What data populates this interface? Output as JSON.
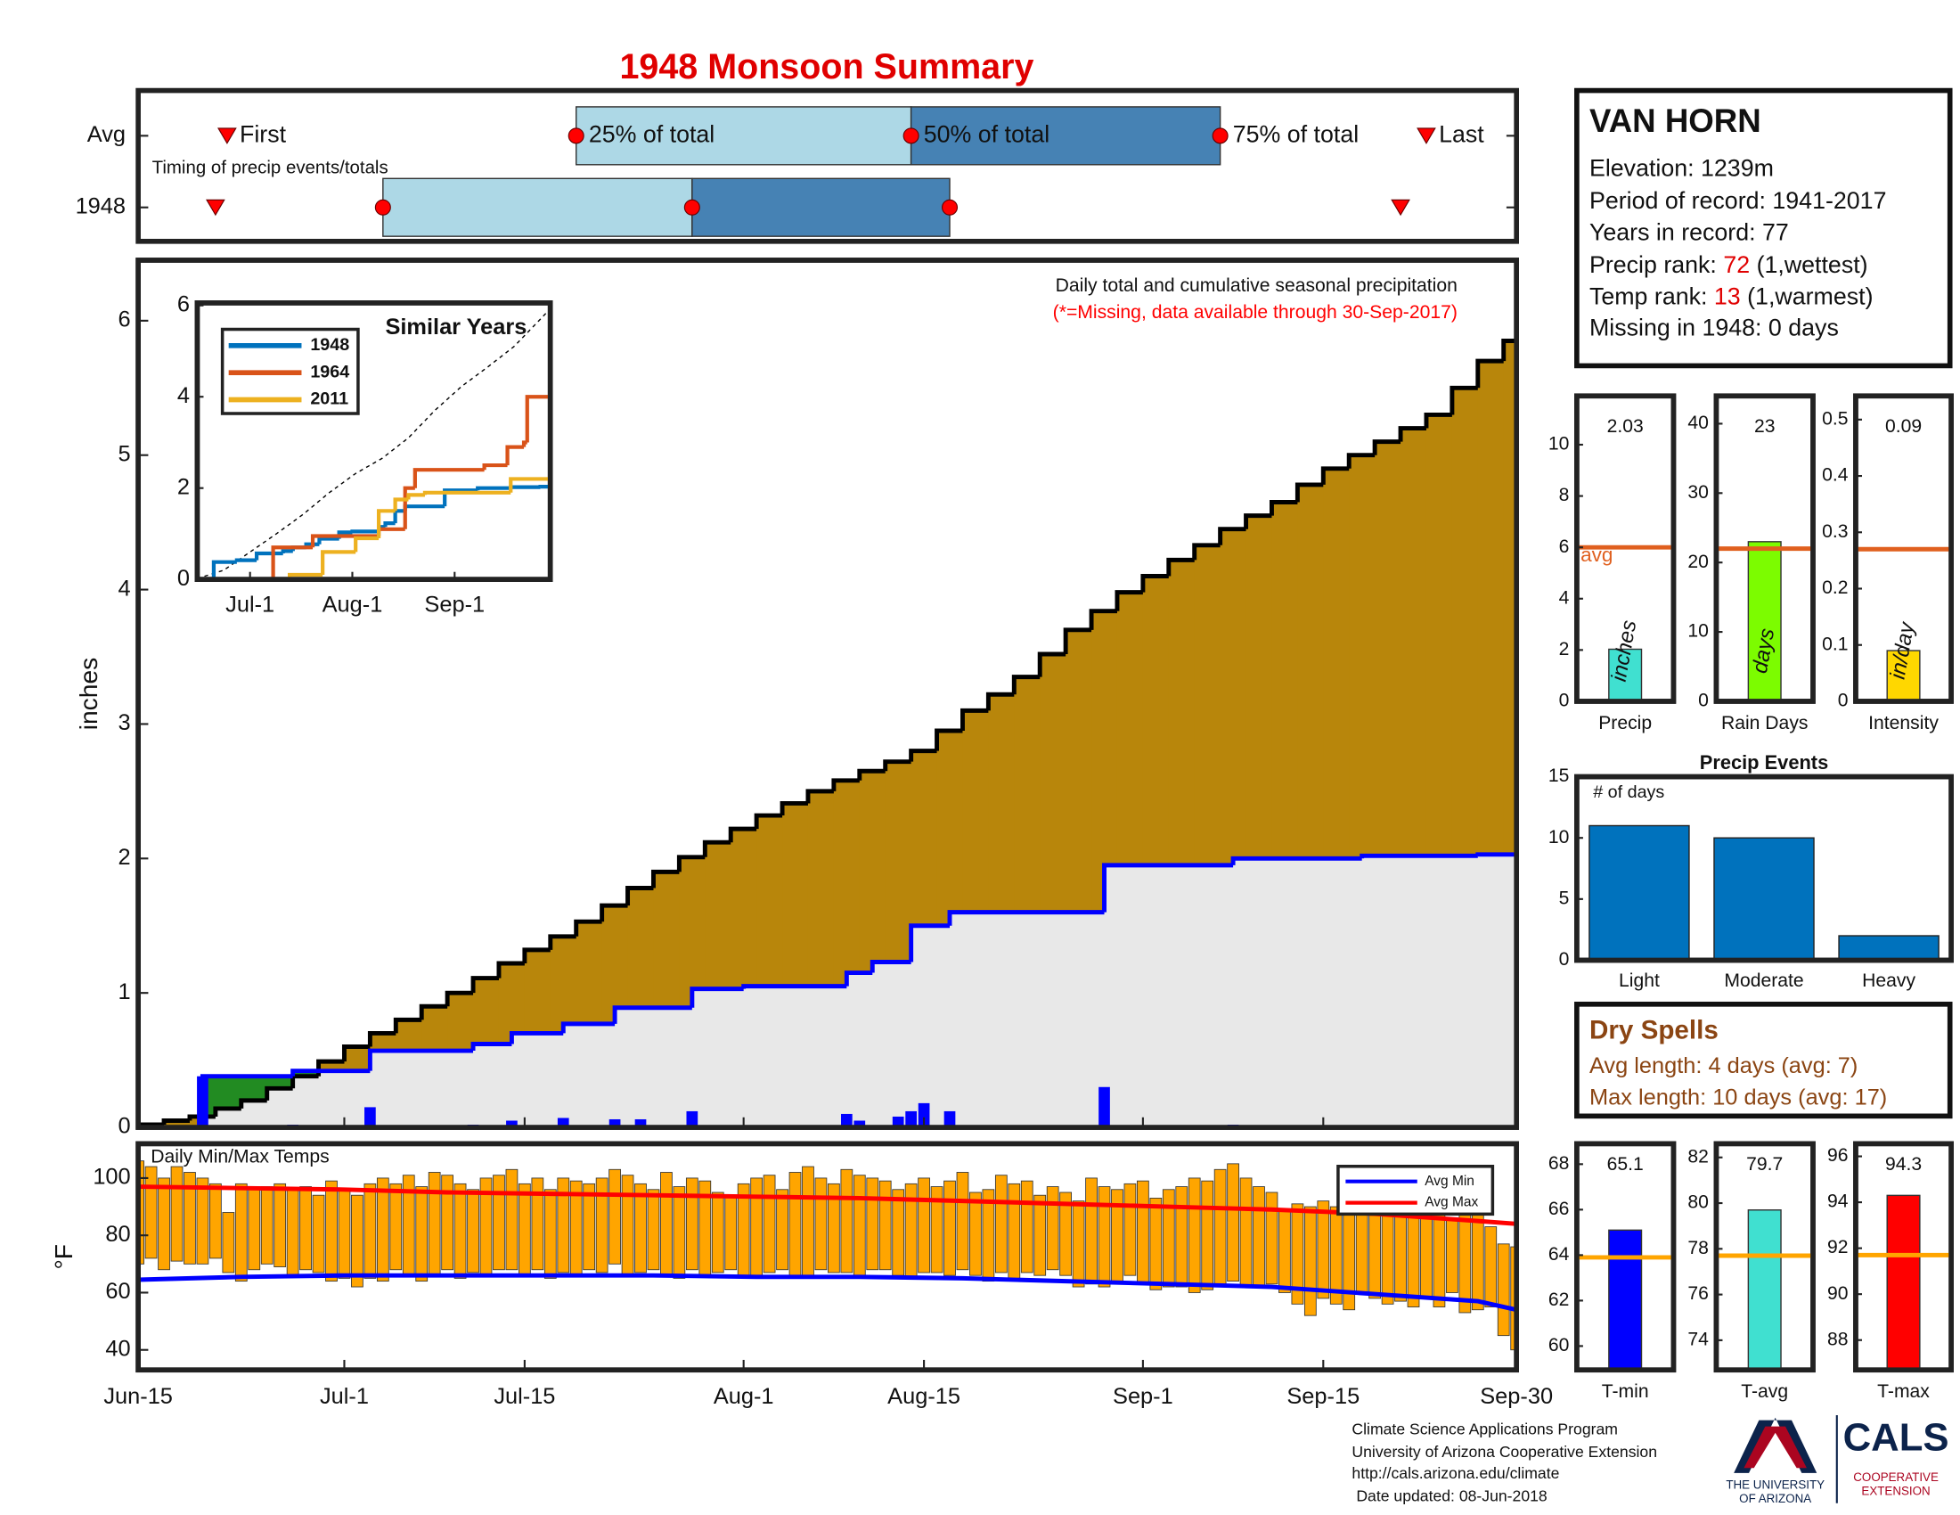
{
  "title": "1948 Monsoon Summary",
  "station": {
    "name": "VAN HORN",
    "elevation": "Elevation: 1239m",
    "period": "Period of record: 1941-2017",
    "years": "Years in record: 77",
    "precip_rank_label": "Precip rank:",
    "precip_rank": 72,
    "precip_rank_note": "(1,wettest)",
    "temp_rank_label": "Temp rank:",
    "temp_rank": 13,
    "temp_rank_note": "(1,warmest)",
    "missing": "Missing in 1948: 0 days"
  },
  "dry_spells": {
    "title": "Dry Spells",
    "avg": "Avg length: 4 days (avg: 7)",
    "max": "Max length: 10 days (avg: 17)"
  },
  "footer": {
    "lines": [
      "Climate Science Applications Program",
      "University of Arizona Cooperative Extension",
      "http://cals.arizona.edu/climate",
      " Date updated: 08-Jun-2018"
    ],
    "logo_ua": [
      "THE UNIVERSITY",
      "OF ARIZONA"
    ],
    "logo_cals": "CALS",
    "logo_ext": [
      "COOPERATIVE",
      "EXTENSION"
    ]
  },
  "chart_data": [
    {
      "type": "timing",
      "note": "Timing of precip events/totals",
      "categories": [
        "Avg",
        "1948"
      ],
      "first": [
        6.9,
        6
      ],
      "q25": [
        34,
        19
      ],
      "q50": [
        60,
        43
      ],
      "q75": [
        84,
        63
      ],
      "last": [
        100,
        98
      ],
      "marker_labels": [
        "First",
        "25% of total",
        "50% of total",
        "75% of total",
        "Last"
      ],
      "colors": [
        "#add8e6",
        "#4682b4"
      ],
      "marker_color": "#ff0000",
      "xlim": [
        0,
        107
      ]
    },
    {
      "type": "cumulative",
      "note": "Daily total and cumulative seasonal precipitation",
      "note2": "(*=Missing, data available through 30-Sep-2017)",
      "note2_color": "#ff0000",
      "ylabel": "inches",
      "xlim": [
        0,
        107
      ],
      "ylim": [
        0,
        6.45
      ],
      "yticks": [
        0,
        1,
        2,
        3,
        4,
        5,
        6
      ],
      "average": {
        "color": "#b8860b",
        "x": [
          0,
          2,
          4,
          6,
          8,
          10,
          12,
          14,
          16,
          18,
          20,
          22,
          24,
          26,
          28,
          30,
          32,
          34,
          36,
          38,
          40,
          42,
          44,
          46,
          48,
          50,
          52,
          54,
          56,
          58,
          60,
          62,
          64,
          66,
          68,
          70,
          72,
          74,
          76,
          78,
          80,
          82,
          84,
          86,
          88,
          90,
          92,
          94,
          96,
          98,
          100,
          102,
          104,
          106,
          107
        ],
        "values": [
          0.02,
          0.05,
          0.08,
          0.14,
          0.2,
          0.29,
          0.38,
          0.49,
          0.6,
          0.7,
          0.8,
          0.9,
          1.0,
          1.11,
          1.22,
          1.32,
          1.42,
          1.53,
          1.65,
          1.78,
          1.9,
          2.01,
          2.12,
          2.22,
          2.32,
          2.41,
          2.5,
          2.58,
          2.65,
          2.72,
          2.8,
          2.95,
          3.1,
          3.22,
          3.35,
          3.52,
          3.7,
          3.84,
          3.98,
          4.1,
          4.22,
          4.33,
          4.45,
          4.55,
          4.65,
          4.78,
          4.9,
          5.0,
          5.1,
          5.2,
          5.3,
          5.5,
          5.7,
          5.85,
          5.93
        ]
      },
      "observed": {
        "color": "#0000ff",
        "fill": "#e8e8e8",
        "above_color": "#228b22",
        "x": [
          0,
          5,
          12,
          18,
          26,
          29,
          33,
          37,
          43,
          47,
          55,
          57,
          60,
          63,
          75,
          85,
          95,
          104
        ],
        "values": [
          0,
          0.38,
          0.42,
          0.57,
          0.62,
          0.7,
          0.77,
          0.89,
          1.03,
          1.05,
          1.15,
          1.23,
          1.5,
          1.6,
          1.95,
          2.0,
          2.02,
          2.03
        ]
      },
      "daily": {
        "color": "#0000ff",
        "x": [
          5,
          12,
          18,
          26,
          29,
          33,
          37,
          39,
          43,
          55,
          56,
          59,
          60,
          61,
          63,
          75,
          85,
          95,
          104
        ],
        "values": [
          0.38,
          0.02,
          0.15,
          0.02,
          0.05,
          0.07,
          0.06,
          0.06,
          0.12,
          0.1,
          0.05,
          0.08,
          0.12,
          0.18,
          0.12,
          0.3,
          0.02,
          0.01,
          0.01
        ]
      }
    },
    {
      "type": "inset",
      "title": "Similar Years",
      "xlim": [
        0,
        107
      ],
      "ylim": [
        0,
        6
      ],
      "yticks": [
        0,
        2,
        4,
        6
      ],
      "xticks": [
        {
          "value": 16,
          "label": "Jul-1"
        },
        {
          "value": 47,
          "label": "Aug-1"
        },
        {
          "value": 78,
          "label": "Sep-1"
        }
      ],
      "reference": {
        "color": "#000000",
        "x": [
          0,
          8,
          16,
          24,
          32,
          40,
          48,
          56,
          64,
          72,
          80,
          88,
          96,
          104,
          107
        ],
        "values": [
          0.02,
          0.2,
          0.6,
          1.0,
          1.42,
          1.9,
          2.32,
          2.65,
          3.1,
          3.7,
          4.22,
          4.65,
          5.1,
          5.7,
          5.93
        ]
      },
      "series": [
        {
          "name": "1948",
          "color": "#0072bd",
          "x": [
            0,
            5,
            12,
            18,
            26,
            29,
            33,
            37,
            43,
            47,
            55,
            57,
            60,
            63,
            75,
            85,
            95,
            104
          ],
          "values": [
            0,
            0.38,
            0.42,
            0.57,
            0.62,
            0.7,
            0.77,
            0.89,
            1.03,
            1.05,
            1.15,
            1.23,
            1.5,
            1.6,
            1.95,
            2.0,
            2.02,
            2.03
          ]
        },
        {
          "name": "1964",
          "color": "#d95319",
          "x": [
            0,
            23,
            35,
            55,
            63,
            66,
            87,
            94,
            99,
            100,
            107
          ],
          "values": [
            0,
            0.7,
            0.95,
            1.1,
            2.0,
            2.4,
            2.5,
            2.9,
            3.0,
            4.0,
            4.1
          ]
        },
        {
          "name": "2011",
          "color": "#edb120",
          "x": [
            0,
            28,
            38,
            48,
            55,
            60,
            64,
            69,
            95,
            107
          ],
          "values": [
            0,
            0.1,
            0.6,
            0.9,
            1.5,
            1.75,
            1.85,
            1.9,
            2.2,
            2.2
          ]
        }
      ]
    },
    {
      "type": "bar",
      "categories": [
        "Precip"
      ],
      "values": [
        2.03
      ],
      "avg": 6.0,
      "avg_label": "avg",
      "avg_color": "#e0601f",
      "unit": "inches",
      "color": "#40e0d0",
      "ylim": [
        0,
        11.9
      ],
      "yticks": [
        0,
        2,
        4,
        6,
        8,
        10
      ]
    },
    {
      "type": "bar",
      "categories": [
        "Rain Days"
      ],
      "values": [
        23
      ],
      "avg": 22,
      "avg_color": "#e0601f",
      "unit": "days",
      "color": "#7cfc00",
      "ylim": [
        0,
        44
      ],
      "yticks": [
        0,
        10,
        20,
        30,
        40
      ]
    },
    {
      "type": "bar",
      "categories": [
        "Intensity"
      ],
      "values": [
        0.09
      ],
      "avg": 0.27,
      "avg_color": "#e0601f",
      "unit": "in/day",
      "color": "#ffd700",
      "ylim": [
        0,
        0.542
      ],
      "yticks": [
        0,
        0.1,
        0.2,
        0.3,
        0.4,
        0.5
      ]
    },
    {
      "type": "bar",
      "title": "Precip Events",
      "ylabel": "# of days",
      "categories": [
        "Light",
        "Moderate",
        "Heavy"
      ],
      "values": [
        11,
        10,
        2
      ],
      "color": "#0072bd",
      "ylim": [
        0,
        15
      ],
      "yticks": [
        0,
        5,
        10,
        15
      ]
    },
    {
      "type": "temps",
      "title": "Daily Min/Max Temps",
      "ylabel": "°F",
      "bar_color": "#ffa500",
      "xlim": [
        0,
        107
      ],
      "ylim": [
        33,
        112
      ],
      "yticks": [
        40,
        60,
        80,
        100
      ],
      "xticks": [
        {
          "value": 0,
          "label": "Jun-15"
        },
        {
          "value": 16,
          "label": "Jul-1"
        },
        {
          "value": 30,
          "label": "Jul-15"
        },
        {
          "value": 47,
          "label": "Aug-1"
        },
        {
          "value": 61,
          "label": "Aug-15"
        },
        {
          "value": 78,
          "label": "Sep-1"
        },
        {
          "value": 92,
          "label": "Sep-15"
        },
        {
          "value": 107,
          "label": "Sep-30"
        }
      ],
      "x": [
        0,
        1,
        2,
        3,
        4,
        5,
        6,
        7,
        8,
        9,
        10,
        11,
        12,
        13,
        14,
        15,
        16,
        17,
        18,
        19,
        20,
        21,
        22,
        23,
        24,
        25,
        26,
        27,
        28,
        29,
        30,
        31,
        32,
        33,
        34,
        35,
        36,
        37,
        38,
        39,
        40,
        41,
        42,
        43,
        44,
        45,
        46,
        47,
        48,
        49,
        50,
        51,
        52,
        53,
        54,
        55,
        56,
        57,
        58,
        59,
        60,
        61,
        62,
        63,
        64,
        65,
        66,
        67,
        68,
        69,
        70,
        71,
        72,
        73,
        74,
        75,
        76,
        77,
        78,
        79,
        80,
        81,
        82,
        83,
        84,
        85,
        86,
        87,
        88,
        89,
        90,
        91,
        92,
        93,
        94,
        95,
        96,
        97,
        98,
        99,
        100,
        101,
        102,
        103,
        104,
        105,
        106,
        107
      ],
      "daily_max": [
        106,
        104,
        100,
        104,
        102,
        100,
        98,
        88,
        98,
        97,
        97,
        98,
        96,
        97,
        94,
        99,
        96,
        94,
        98,
        100,
        98,
        101,
        97,
        102,
        101,
        98,
        96,
        100,
        101,
        103,
        98,
        100,
        96,
        100,
        99,
        98,
        100,
        103,
        101,
        98,
        96,
        102,
        97,
        100,
        99,
        95,
        94,
        98,
        100,
        101,
        96,
        102,
        104,
        100,
        98,
        103,
        101,
        100,
        99,
        96,
        98,
        100,
        97,
        99,
        102,
        95,
        96,
        101,
        98,
        99,
        94,
        97,
        95,
        92,
        100,
        97,
        96,
        98,
        99,
        93,
        96,
        97,
        100,
        99,
        103,
        105,
        100,
        97,
        95,
        89,
        91,
        90,
        92,
        90,
        97,
        94,
        88,
        90,
        93,
        88,
        90,
        87,
        86,
        89,
        88,
        83,
        77,
        76
      ],
      "daily_min": [
        70,
        72,
        68,
        71,
        70,
        70,
        72,
        67,
        64,
        68,
        70,
        69,
        66,
        68,
        67,
        64,
        65,
        62,
        65,
        64,
        68,
        66,
        64,
        66,
        68,
        65,
        67,
        66,
        68,
        68,
        66,
        68,
        65,
        67,
        66,
        68,
        67,
        70,
        66,
        67,
        68,
        66,
        65,
        68,
        66,
        67,
        68,
        66,
        65,
        67,
        68,
        66,
        65,
        68,
        67,
        67,
        66,
        68,
        68,
        66,
        65,
        67,
        67,
        66,
        68,
        66,
        64,
        67,
        65,
        67,
        66,
        68,
        66,
        62,
        63,
        62,
        64,
        66,
        63,
        61,
        62,
        62,
        60,
        61,
        63,
        64,
        62,
        62,
        63,
        60,
        56,
        52,
        58,
        56,
        54,
        60,
        58,
        56,
        57,
        55,
        58,
        55,
        60,
        53,
        54,
        55,
        45,
        40
      ],
      "series": [
        {
          "name": "Avg Min",
          "color": "#0000ff",
          "x": [
            0,
            8,
            16,
            24,
            32,
            40,
            48,
            56,
            64,
            72,
            80,
            88,
            96,
            104,
            107
          ],
          "values": [
            64.5,
            65.5,
            66,
            66,
            66,
            66,
            65.5,
            65.5,
            65,
            64,
            63,
            62,
            59.5,
            57,
            54
          ]
        },
        {
          "name": "Avg Max",
          "color": "#ff0000",
          "x": [
            0,
            8,
            16,
            24,
            32,
            40,
            48,
            56,
            64,
            72,
            80,
            88,
            96,
            104,
            107
          ],
          "values": [
            97,
            96.5,
            96,
            95,
            94.5,
            94,
            93.5,
            93,
            92,
            91,
            90,
            89,
            87.5,
            85,
            84
          ]
        }
      ]
    },
    {
      "type": "bar",
      "categories": [
        "T-min"
      ],
      "values": [
        65.1
      ],
      "avg": 63.9,
      "avg_color": "#ffa500",
      "color": "#0000ff",
      "ylim": [
        58.95,
        68.9
      ],
      "yticks": [
        60,
        62,
        64,
        66,
        68
      ]
    },
    {
      "type": "bar",
      "categories": [
        "T-avg"
      ],
      "values": [
        79.7
      ],
      "avg": 77.7,
      "avg_color": "#ffa500",
      "color": "#40e0d0",
      "ylim": [
        72.7,
        82.6
      ],
      "yticks": [
        74,
        76,
        78,
        80,
        82
      ]
    },
    {
      "type": "bar",
      "categories": [
        "T-max"
      ],
      "values": [
        94.3
      ],
      "avg": 91.7,
      "avg_color": "#ffa500",
      "color": "#ff0000",
      "ylim": [
        86.7,
        96.55
      ],
      "yticks": [
        88,
        90,
        92,
        94,
        96
      ]
    }
  ]
}
